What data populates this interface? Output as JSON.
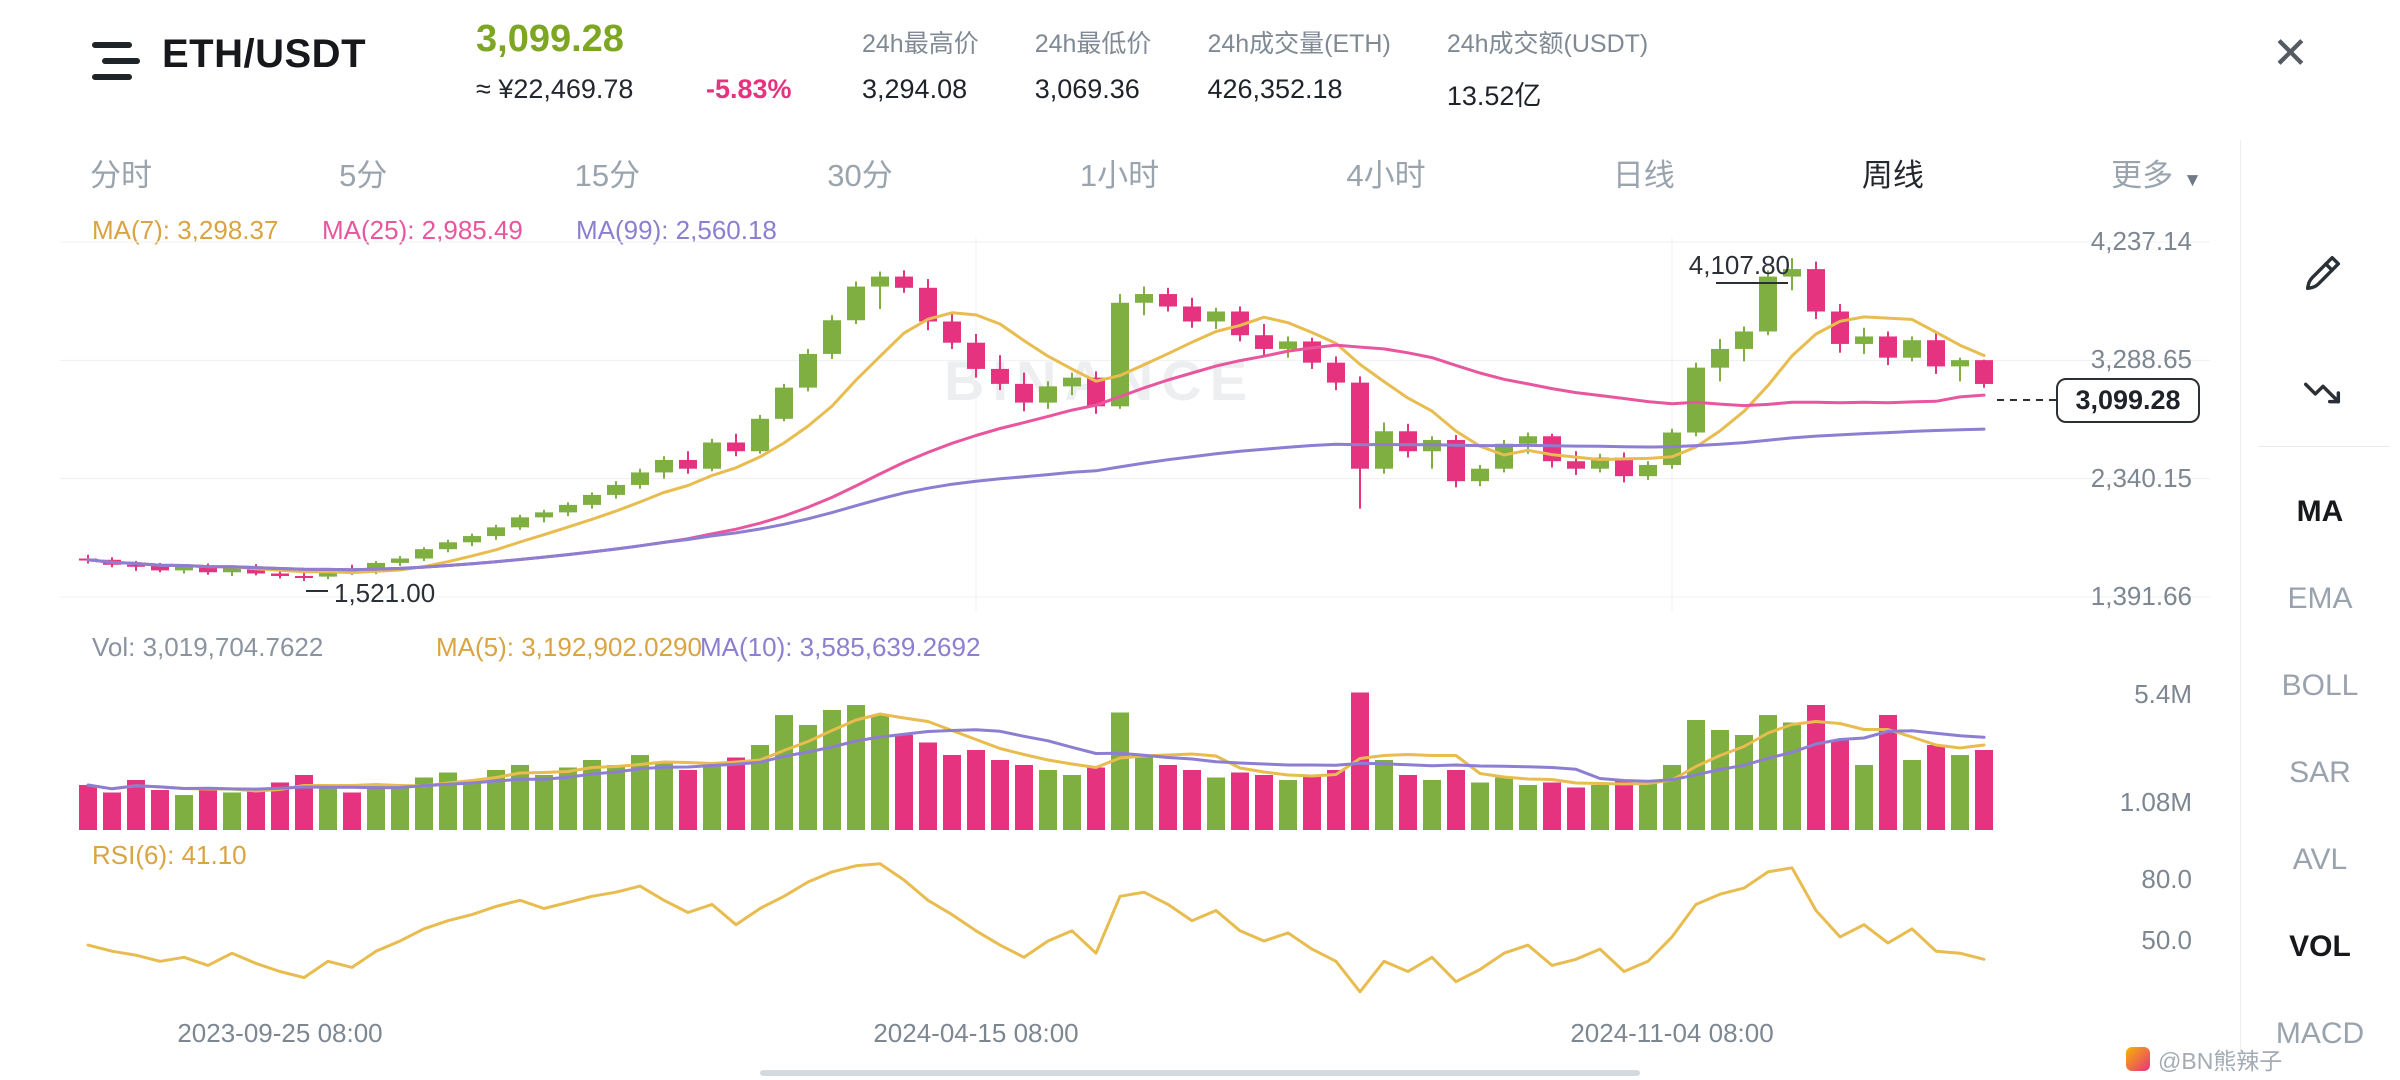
{
  "header": {
    "symbol": "ETH/USDT",
    "price": "3,099.28",
    "price_cny": "≈ ¥22,469.78",
    "change_pct": "-5.83%",
    "close_glyph": "✕",
    "stats": [
      {
        "label": "24h最高价",
        "value": "3,294.08"
      },
      {
        "label": "24h最低价",
        "value": "3,069.36"
      },
      {
        "label": "24h成交量(ETH)",
        "value": "426,352.18"
      },
      {
        "label": "24h成交额(USDT)",
        "value": "13.52亿"
      }
    ]
  },
  "tabs": [
    {
      "key": "time",
      "label": "分时",
      "active": false
    },
    {
      "key": "5m",
      "label": "5分",
      "active": false
    },
    {
      "key": "15m",
      "label": "15分",
      "active": false
    },
    {
      "key": "30m",
      "label": "30分",
      "active": false
    },
    {
      "key": "1h",
      "label": "1小时",
      "active": false
    },
    {
      "key": "4h",
      "label": "4小时",
      "active": false
    },
    {
      "key": "1d",
      "label": "日线",
      "active": false
    },
    {
      "key": "1w",
      "label": "周线",
      "active": true
    },
    {
      "key": "more",
      "label": "更多",
      "active": false,
      "caret": "▼"
    }
  ],
  "legend": {
    "ma7": "MA(7): 3,298.37",
    "ma25": "MA(25): 2,985.49",
    "ma99": "MA(99): 2,560.18"
  },
  "volume_legend": {
    "vol": "Vol: 3,019,704.7622",
    "ma5": "MA(5): 3,192,902.0290",
    "ma10": "MA(10): 3,585,639.2692"
  },
  "rsi_legend": "RSI(6): 41.10",
  "axes": {
    "price_labels": [
      "4,237.14",
      "3,288.65",
      "2,340.15",
      "1,391.66"
    ],
    "volume_labels": [
      "5.4M",
      "1.08M"
    ],
    "rsi_labels": [
      "80.0",
      "50.0"
    ],
    "date_labels": [
      "2023-09-25 08:00",
      "2024-04-15 08:00",
      "2024-11-04 08:00"
    ]
  },
  "annotations": {
    "high": "4,107.80",
    "low": "1,521.00",
    "last_price": "3,099.28"
  },
  "sidebar": {
    "items": [
      {
        "key": "ma",
        "label": "MA",
        "active": true
      },
      {
        "key": "ema",
        "label": "EMA",
        "active": false
      },
      {
        "key": "boll",
        "label": "BOLL",
        "active": false
      },
      {
        "key": "sar",
        "label": "SAR",
        "active": false
      },
      {
        "key": "avl",
        "label": "AVL",
        "active": false
      },
      {
        "key": "vol",
        "label": "VOL",
        "active": true
      },
      {
        "key": "macd",
        "label": "MACD",
        "active": false
      }
    ]
  },
  "watermark": "BINANCE",
  "credit": "@BN熊辣子",
  "colors": {
    "up": "#7fae41",
    "down": "#e6337f",
    "price_green": "#7da722",
    "ma7": "#e8bc4f",
    "ma25": "#e8569e",
    "ma99": "#8d7ed2",
    "ma7_text": "#d9a441",
    "vol_text": "#8a94a0",
    "grid": "#edf0f3",
    "dash": "#2b3036"
  },
  "chart_data": {
    "type": "candlestick",
    "interval": "1W",
    "price_range": [
      1391.66,
      4237.14
    ],
    "price_ticks": [
      4237.14,
      3288.65,
      2340.15,
      1391.66
    ],
    "volume_ticks": [
      5.4,
      1.08
    ],
    "rsi_ticks": [
      80,
      50
    ],
    "x_tick_indices": [
      8,
      37,
      66
    ],
    "grid_x_indices": [
      37,
      66
    ],
    "high_index": 71,
    "low_index": 9,
    "last_close": 3099.28,
    "price_ma_periods": [
      7,
      25,
      99
    ],
    "volume_ma_periods": [
      5,
      10
    ],
    "rsi_period": 6,
    "candles": [
      [
        1700,
        1730,
        1660,
        1690
      ],
      [
        1690,
        1710,
        1630,
        1650
      ],
      [
        1650,
        1680,
        1601,
        1640
      ],
      [
        1640,
        1665,
        1590,
        1605
      ],
      [
        1605,
        1650,
        1580,
        1635
      ],
      [
        1635,
        1660,
        1570,
        1590
      ],
      [
        1590,
        1640,
        1560,
        1630
      ],
      [
        1630,
        1655,
        1565,
        1580
      ],
      [
        1580,
        1620,
        1540,
        1560
      ],
      [
        1560,
        1600,
        1521,
        1555
      ],
      [
        1555,
        1620,
        1535,
        1605
      ],
      [
        1605,
        1650,
        1570,
        1590
      ],
      [
        1590,
        1680,
        1575,
        1665
      ],
      [
        1665,
        1720,
        1640,
        1700
      ],
      [
        1700,
        1790,
        1680,
        1775
      ],
      [
        1775,
        1850,
        1750,
        1830
      ],
      [
        1830,
        1900,
        1800,
        1880
      ],
      [
        1880,
        1970,
        1850,
        1950
      ],
      [
        1950,
        2050,
        1930,
        2030
      ],
      [
        2030,
        2090,
        1990,
        2070
      ],
      [
        2070,
        2150,
        2040,
        2130
      ],
      [
        2130,
        2230,
        2100,
        2210
      ],
      [
        2210,
        2320,
        2180,
        2290
      ],
      [
        2290,
        2420,
        2260,
        2390
      ],
      [
        2390,
        2520,
        2340,
        2490
      ],
      [
        2490,
        2560,
        2380,
        2420
      ],
      [
        2420,
        2660,
        2400,
        2630
      ],
      [
        2630,
        2700,
        2520,
        2560
      ],
      [
        2560,
        2850,
        2540,
        2820
      ],
      [
        2820,
        3100,
        2800,
        3070
      ],
      [
        3070,
        3380,
        3040,
        3340
      ],
      [
        3340,
        3650,
        3300,
        3610
      ],
      [
        3610,
        3920,
        3580,
        3880
      ],
      [
        3880,
        4000,
        3700,
        3960
      ],
      [
        3960,
        4010,
        3830,
        3870
      ],
      [
        3870,
        3940,
        3530,
        3600
      ],
      [
        3600,
        3680,
        3380,
        3430
      ],
      [
        3430,
        3500,
        3150,
        3220
      ],
      [
        3220,
        3330,
        3050,
        3100
      ],
      [
        3100,
        3190,
        2880,
        2950
      ],
      [
        2950,
        3120,
        2900,
        3080
      ],
      [
        3080,
        3190,
        3010,
        3150
      ],
      [
        3150,
        3200,
        2860,
        2920
      ],
      [
        2920,
        3820,
        2900,
        3750
      ],
      [
        3750,
        3880,
        3650,
        3820
      ],
      [
        3820,
        3870,
        3680,
        3720
      ],
      [
        3720,
        3790,
        3550,
        3600
      ],
      [
        3600,
        3710,
        3540,
        3680
      ],
      [
        3680,
        3720,
        3440,
        3490
      ],
      [
        3490,
        3580,
        3330,
        3380
      ],
      [
        3380,
        3480,
        3310,
        3440
      ],
      [
        3440,
        3470,
        3220,
        3270
      ],
      [
        3270,
        3320,
        3050,
        3110
      ],
      [
        3110,
        3160,
        2100,
        2420
      ],
      [
        2420,
        2790,
        2380,
        2720
      ],
      [
        2720,
        2780,
        2510,
        2560
      ],
      [
        2560,
        2680,
        2420,
        2650
      ],
      [
        2650,
        2690,
        2270,
        2320
      ],
      [
        2320,
        2450,
        2280,
        2420
      ],
      [
        2420,
        2650,
        2390,
        2620
      ],
      [
        2620,
        2710,
        2540,
        2680
      ],
      [
        2680,
        2700,
        2430,
        2480
      ],
      [
        2480,
        2560,
        2370,
        2420
      ],
      [
        2420,
        2540,
        2390,
        2510
      ],
      [
        2510,
        2550,
        2310,
        2360
      ],
      [
        2360,
        2480,
        2330,
        2450
      ],
      [
        2450,
        2740,
        2420,
        2710
      ],
      [
        2710,
        3270,
        2680,
        3230
      ],
      [
        3230,
        3460,
        3120,
        3380
      ],
      [
        3380,
        3560,
        3280,
        3520
      ],
      [
        3520,
        4010,
        3490,
        3960
      ],
      [
        3960,
        4107.8,
        3850,
        4020
      ],
      [
        4020,
        4080,
        3620,
        3680
      ],
      [
        3680,
        3740,
        3350,
        3420
      ],
      [
        3420,
        3550,
        3340,
        3480
      ],
      [
        3480,
        3520,
        3250,
        3310
      ],
      [
        3310,
        3480,
        3280,
        3450
      ],
      [
        3450,
        3510,
        3180,
        3240
      ],
      [
        3240,
        3310,
        3120,
        3290
      ],
      [
        3290,
        3294.08,
        3069.36,
        3099.28
      ]
    ],
    "volumes": [
      1.8,
      1.5,
      2.0,
      1.6,
      1.4,
      1.7,
      1.5,
      1.6,
      1.9,
      2.2,
      1.7,
      1.5,
      1.8,
      1.7,
      2.1,
      2.3,
      2.0,
      2.4,
      2.6,
      2.2,
      2.5,
      2.8,
      2.6,
      3.0,
      2.7,
      2.4,
      2.6,
      2.9,
      3.4,
      4.6,
      4.2,
      4.8,
      5.0,
      4.6,
      3.8,
      3.5,
      3.0,
      3.2,
      2.8,
      2.6,
      2.4,
      2.2,
      2.5,
      4.7,
      3.0,
      2.6,
      2.4,
      2.1,
      2.3,
      2.2,
      2.0,
      2.2,
      2.4,
      5.5,
      2.8,
      2.2,
      2.0,
      2.4,
      1.9,
      2.1,
      1.8,
      1.9,
      1.7,
      1.8,
      2.0,
      1.9,
      2.6,
      4.4,
      4.0,
      3.8,
      4.6,
      4.3,
      5.0,
      3.6,
      2.6,
      4.6,
      2.8,
      3.4,
      3.0,
      3.2
    ],
    "rsi": [
      48,
      45,
      43,
      40,
      42,
      38,
      44,
      39,
      35,
      32,
      40,
      37,
      45,
      50,
      56,
      60,
      63,
      67,
      70,
      66,
      69,
      72,
      74,
      77,
      70,
      64,
      68,
      58,
      66,
      72,
      79,
      84,
      87,
      88,
      80,
      70,
      63,
      55,
      48,
      42,
      50,
      55,
      44,
      72,
      74,
      68,
      60,
      65,
      55,
      50,
      54,
      46,
      40,
      25,
      40,
      35,
      42,
      30,
      36,
      44,
      48,
      38,
      41,
      46,
      35,
      40,
      52,
      68,
      73,
      76,
      84,
      86,
      65,
      52,
      58,
      49,
      56,
      45,
      44,
      41
    ]
  }
}
